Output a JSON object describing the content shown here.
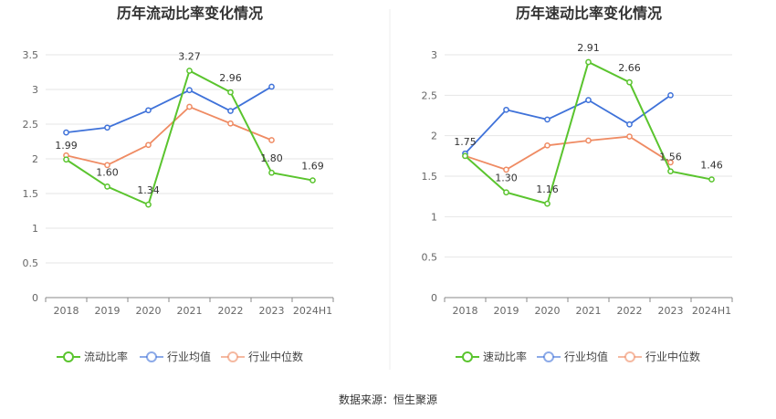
{
  "source": "数据来源：恒生聚源",
  "colors": {
    "main": "#5ac42e",
    "avg": "#3f72d9",
    "median": "#ef8b63",
    "grid": "#e6e6e6",
    "axis": "#888888"
  },
  "chart_data": [
    {
      "type": "line",
      "title": "历年流动比率变化情况",
      "categories": [
        "2018",
        "2019",
        "2020",
        "2021",
        "2022",
        "2023",
        "2024H1"
      ],
      "ylim": [
        0,
        3.5
      ],
      "yticks": [
        "0",
        "0.5",
        "1",
        "1.5",
        "2",
        "2.5",
        "3",
        "3.5"
      ],
      "ytick_values": [
        0,
        0.5,
        1,
        1.5,
        2,
        2.5,
        3,
        3.5
      ],
      "series": [
        {
          "name": "流动比率",
          "role": "main",
          "values": [
            1.99,
            1.6,
            1.34,
            3.27,
            2.96,
            1.8,
            1.69
          ],
          "labels": [
            "1.99",
            "1.60",
            "1.34",
            "3.27",
            "2.96",
            "1.80",
            "1.69"
          ]
        },
        {
          "name": "行业均值",
          "role": "avg",
          "values": [
            2.38,
            2.45,
            2.7,
            2.99,
            2.69,
            3.04,
            null
          ]
        },
        {
          "name": "行业中位数",
          "role": "median",
          "values": [
            2.05,
            1.91,
            2.2,
            2.75,
            2.51,
            2.27,
            null
          ]
        }
      ]
    },
    {
      "type": "line",
      "title": "历年速动比率变化情况",
      "categories": [
        "2018",
        "2019",
        "2020",
        "2021",
        "2022",
        "2023",
        "2024H1"
      ],
      "ylim": [
        0,
        3
      ],
      "yticks": [
        "0",
        "0.5",
        "1",
        "1.5",
        "2",
        "2.5",
        "3"
      ],
      "ytick_values": [
        0,
        0.5,
        1,
        1.5,
        2,
        2.5,
        3
      ],
      "series": [
        {
          "name": "速动比率",
          "role": "main",
          "values": [
            1.75,
            1.3,
            1.16,
            2.91,
            2.66,
            1.56,
            1.46
          ],
          "labels": [
            "1.75",
            "1.30",
            "1.16",
            "2.91",
            "2.66",
            "1.56",
            "1.46"
          ]
        },
        {
          "name": "行业均值",
          "role": "avg",
          "values": [
            1.78,
            2.32,
            2.2,
            2.44,
            2.14,
            2.5,
            null
          ]
        },
        {
          "name": "行业中位数",
          "role": "median",
          "values": [
            1.75,
            1.58,
            1.88,
            1.94,
            1.99,
            1.67,
            null
          ]
        }
      ]
    }
  ]
}
